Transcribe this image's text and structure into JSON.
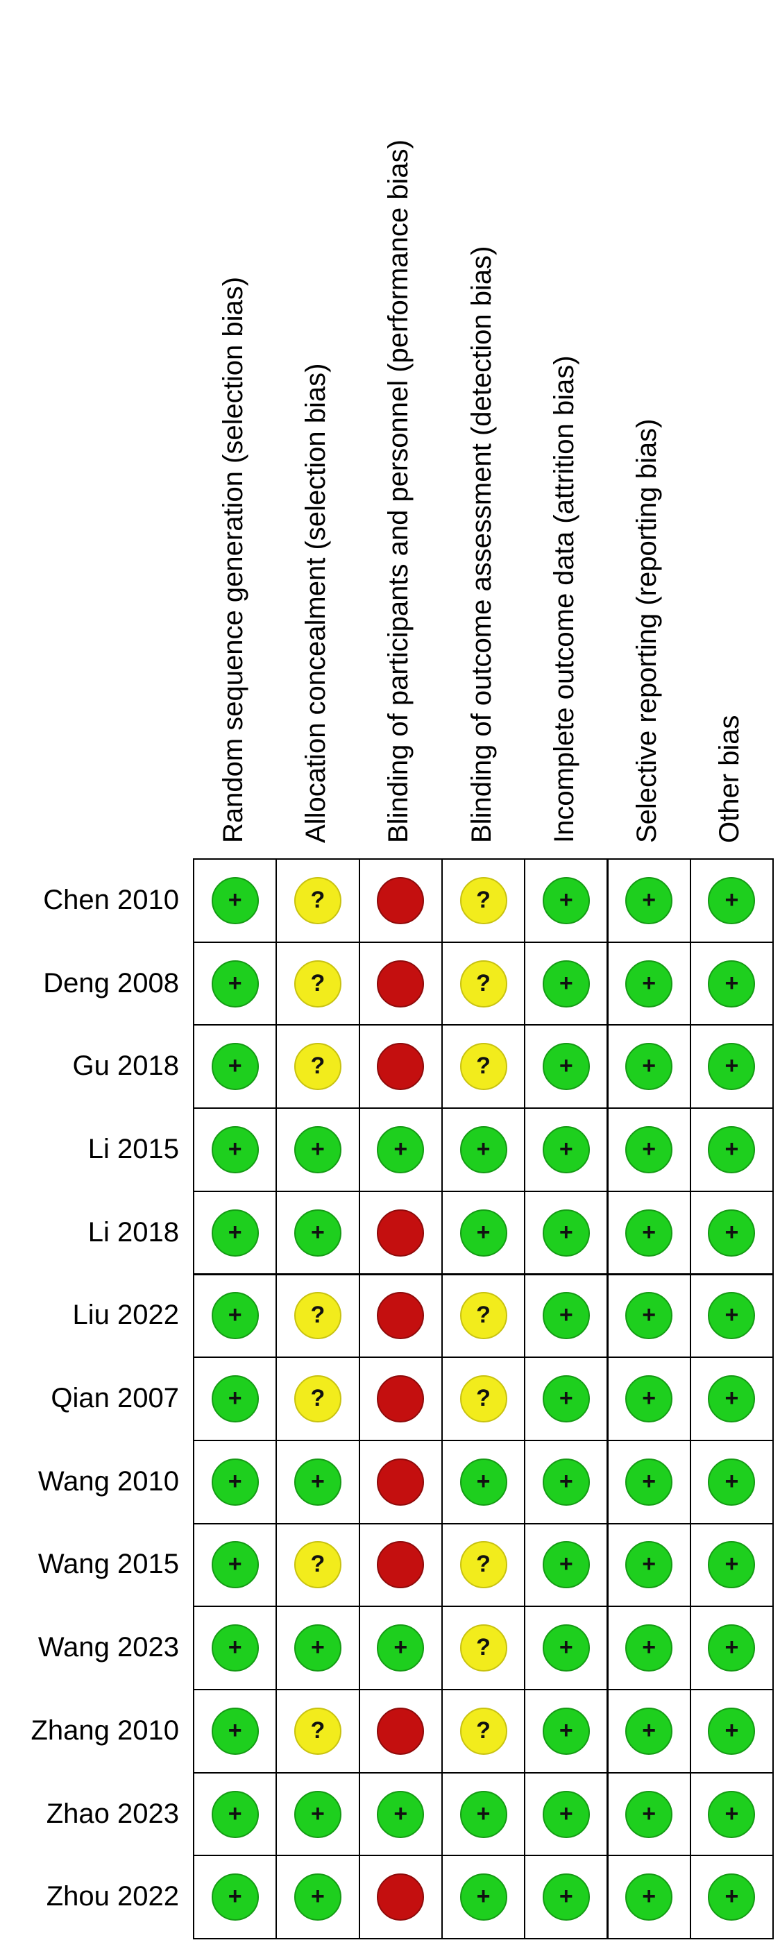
{
  "chart_data": {
    "type": "table",
    "columns": [
      "Random sequence generation (selection bias)",
      "Allocation concealment (selection bias)",
      "Blinding of participants and personnel (performance bias)",
      "Blinding of outcome assessment (detection bias)",
      "Incomplete outcome data (attrition bias)",
      "Selective reporting (reporting bias)",
      "Other bias"
    ],
    "rows": [
      {
        "study": "Chen 2010",
        "judgements": [
          "low",
          "unclear",
          "high",
          "unclear",
          "low",
          "low",
          "low"
        ]
      },
      {
        "study": "Deng 2008",
        "judgements": [
          "low",
          "unclear",
          "high",
          "unclear",
          "low",
          "low",
          "low"
        ]
      },
      {
        "study": "Gu 2018",
        "judgements": [
          "low",
          "unclear",
          "high",
          "unclear",
          "low",
          "low",
          "low"
        ]
      },
      {
        "study": "Li 2015",
        "judgements": [
          "low",
          "low",
          "low",
          "low",
          "low",
          "low",
          "low"
        ]
      },
      {
        "study": "Li 2018",
        "judgements": [
          "low",
          "low",
          "high",
          "low",
          "low",
          "low",
          "low"
        ]
      },
      {
        "study": "Liu 2022",
        "judgements": [
          "low",
          "unclear",
          "high",
          "unclear",
          "low",
          "low",
          "low"
        ]
      },
      {
        "study": "Qian 2007",
        "judgements": [
          "low",
          "unclear",
          "high",
          "unclear",
          "low",
          "low",
          "low"
        ]
      },
      {
        "study": "Wang 2010",
        "judgements": [
          "low",
          "low",
          "high",
          "low",
          "low",
          "low",
          "low"
        ]
      },
      {
        "study": "Wang 2015",
        "judgements": [
          "low",
          "unclear",
          "high",
          "unclear",
          "low",
          "low",
          "low"
        ]
      },
      {
        "study": "Wang 2023",
        "judgements": [
          "low",
          "low",
          "low",
          "unclear",
          "low",
          "low",
          "low"
        ]
      },
      {
        "study": "Zhang 2010",
        "judgements": [
          "low",
          "unclear",
          "high",
          "unclear",
          "low",
          "low",
          "low"
        ]
      },
      {
        "study": "Zhao 2023",
        "judgements": [
          "low",
          "low",
          "low",
          "low",
          "low",
          "low",
          "low"
        ]
      },
      {
        "study": "Zhou 2022",
        "judgements": [
          "low",
          "low",
          "high",
          "low",
          "low",
          "low",
          "low"
        ]
      }
    ],
    "symbols": {
      "low": "+",
      "unclear": "?",
      "high": ""
    },
    "colors": {
      "low": "#1ecf1e",
      "unclear": "#f2ec1c",
      "high": "#c40f0f"
    }
  }
}
